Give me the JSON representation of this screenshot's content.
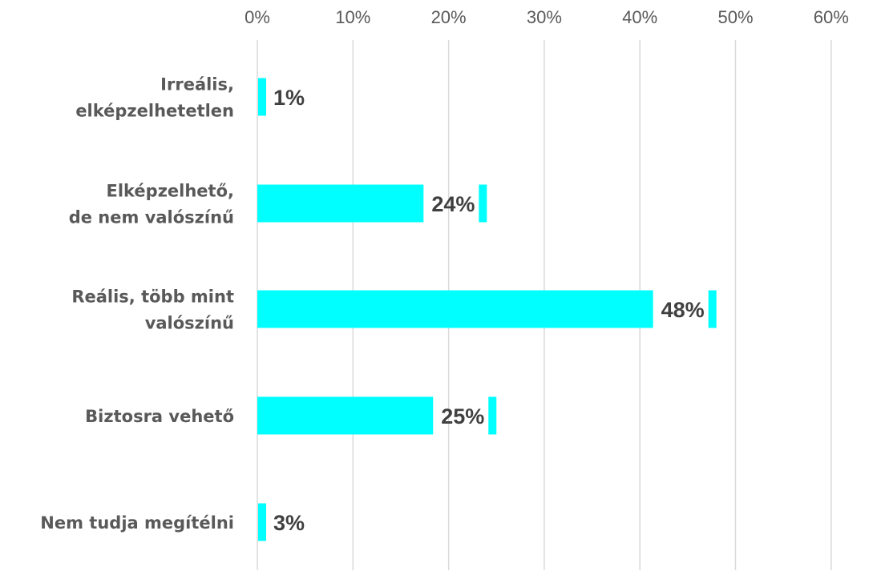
{
  "chart_data": {
    "type": "bar",
    "orientation": "horizontal",
    "categories": [
      [
        "Irreális,",
        "elképzelhetetlen"
      ],
      [
        "Elképzelhető,",
        "de nem valószínű"
      ],
      [
        "Reális, több mint",
        "valószínű"
      ],
      [
        "Biztosra vehető"
      ],
      [
        "Nem tudja megítélni"
      ]
    ],
    "values": [
      1,
      24,
      48,
      25,
      3
    ],
    "value_labels": [
      "1%",
      "24%",
      "48%",
      "25%",
      "3%"
    ],
    "xlim": [
      0,
      60
    ],
    "xticks": [
      "0%",
      "10%",
      "20%",
      "30%",
      "40%",
      "50%",
      "60%"
    ],
    "axis_position": "top",
    "grid": true,
    "legend": "none",
    "bar_color": "#00ffff",
    "grid_color": "#d9d9d9"
  }
}
